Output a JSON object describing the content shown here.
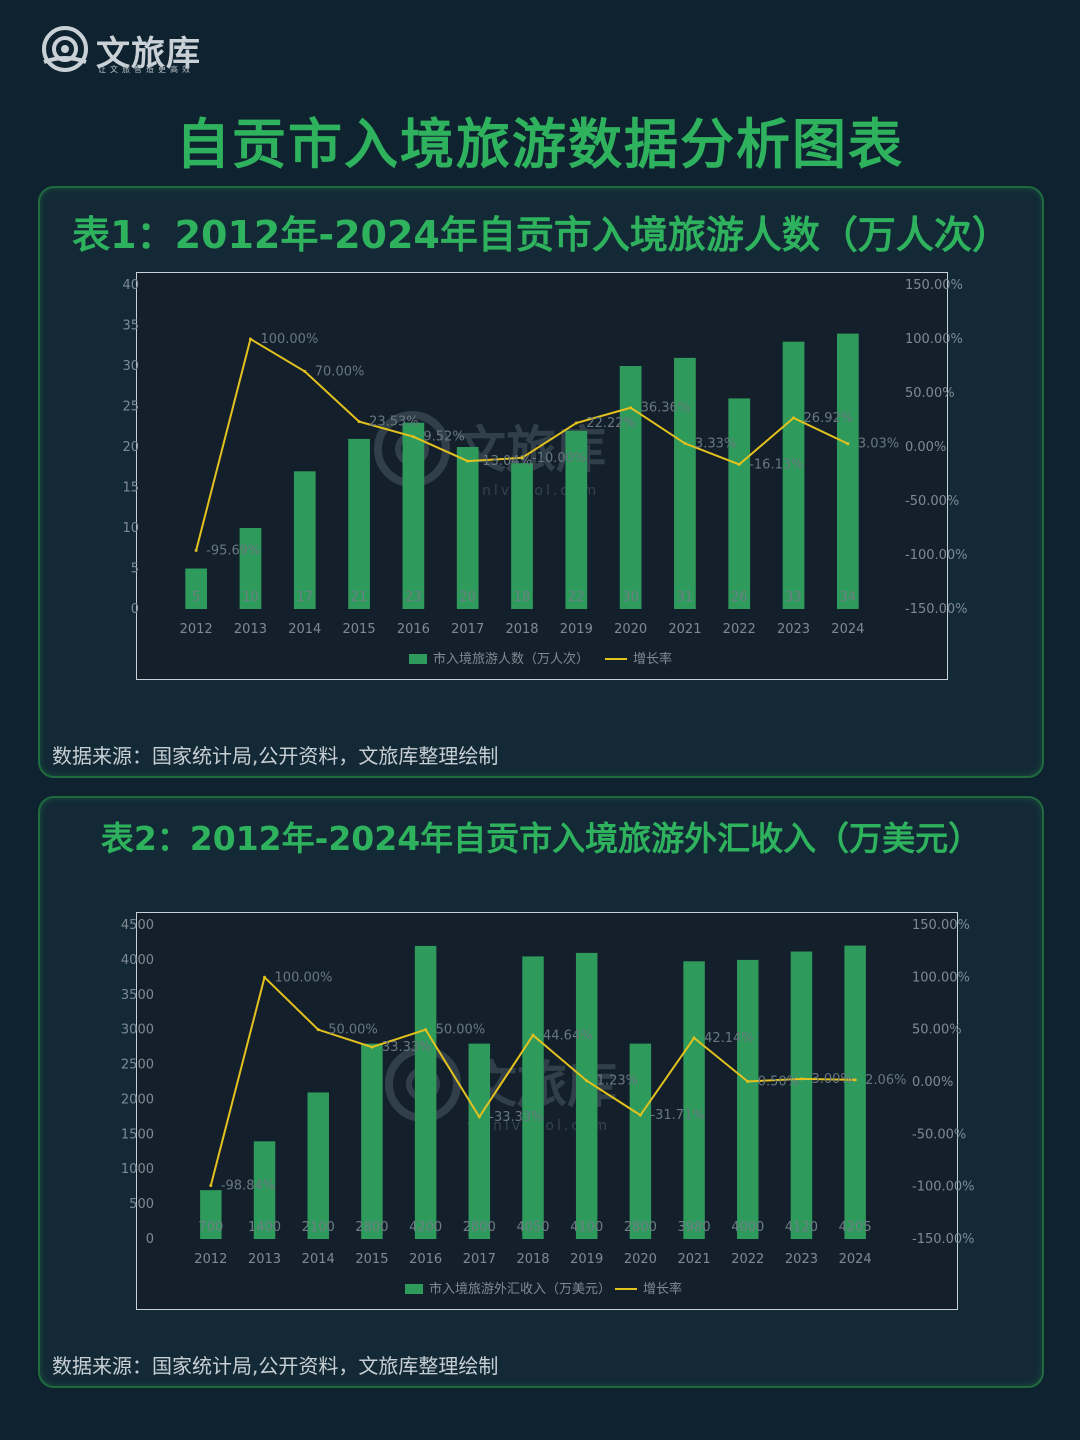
{
  "brand": {
    "name": "文旅库",
    "slogan": "让文旅智造更高效",
    "watermark_name": "文旅库",
    "watermark_url": "wenlvcool.com"
  },
  "page_title": "自贡市入境旅游数据分析图表",
  "colors": {
    "bar": "#2e9a5c",
    "line": "#e3c11e",
    "title": "#2fb25d",
    "background": "#0f2230"
  },
  "chart1": {
    "title": "表1：2012年-2024年自贡市入境旅游人数（万人次）",
    "source": "数据来源：国家统计局,公开资料，文旅库整理绘制"
  },
  "chart2": {
    "title": "表2：2012年-2024年自贡市入境旅游外汇收入（万美元）",
    "source": "数据来源：国家统计局,公开资料，文旅库整理绘制"
  },
  "chart_data": [
    {
      "type": "bar",
      "categories": [
        "2012",
        "2013",
        "2014",
        "2015",
        "2016",
        "2017",
        "2018",
        "2019",
        "2020",
        "2021",
        "2022",
        "2023",
        "2024"
      ],
      "series": [
        {
          "name": "市入境旅游人数（万人次）",
          "type": "bar",
          "axis": "left",
          "values": [
            5,
            10,
            17,
            21,
            23,
            20,
            18,
            22,
            30,
            31,
            26,
            33,
            34
          ],
          "labels": [
            "5",
            "10",
            "17",
            "21",
            "23",
            "20",
            "18",
            "22",
            "30",
            "31",
            "26",
            "33",
            "34"
          ]
        },
        {
          "name": "增长率",
          "type": "line",
          "axis": "right",
          "values": [
            -95.69,
            100.0,
            70.0,
            23.53,
            9.52,
            -13.04,
            -10.0,
            22.22,
            36.36,
            3.33,
            -16.13,
            26.92,
            3.03
          ],
          "labels": [
            "-95.69%",
            "100.00%",
            "70.00%",
            "23.53%",
            "9.52%",
            "-13.04%",
            "-10.00%",
            "22.22%",
            "36.36%",
            "3.33%",
            "-16.13%",
            "26.92%",
            "3.03%"
          ]
        }
      ],
      "y_left": {
        "min": 0,
        "max": 40,
        "ticks": [
          "0",
          "5",
          "10",
          "15",
          "20",
          "25",
          "30",
          "35",
          "40"
        ]
      },
      "y_right": {
        "min": -150,
        "max": 150,
        "ticks": [
          "-150.00%",
          "-100.00%",
          "-50.00%",
          "0.00%",
          "50.00%",
          "100.00%",
          "150.00%"
        ]
      },
      "legend_position": "bottom"
    },
    {
      "type": "bar",
      "categories": [
        "2012",
        "2013",
        "2014",
        "2015",
        "2016",
        "2017",
        "2018",
        "2019",
        "2020",
        "2021",
        "2022",
        "2023",
        "2024"
      ],
      "series": [
        {
          "name": "市入境旅游外汇收入（万美元）",
          "type": "bar",
          "axis": "left",
          "values": [
            700,
            1400,
            2100,
            2800,
            4200,
            2800,
            4050,
            4100,
            2800,
            3980,
            4000,
            4120,
            4205
          ],
          "labels": [
            "700",
            "1400",
            "2100",
            "2800",
            "4200",
            "2800",
            "4050",
            "4100",
            "2800",
            "3980",
            "4000",
            "4120",
            "4205"
          ]
        },
        {
          "name": "增长率",
          "type": "line",
          "axis": "right",
          "values": [
            -98.84,
            100.0,
            50.0,
            33.33,
            50.0,
            -33.33,
            44.64,
            1.23,
            -31.71,
            42.14,
            0.5,
            3.0,
            2.06
          ],
          "labels": [
            "-98.84%",
            "100.00%",
            "50.00%",
            "33.33%",
            "50.00%",
            "-33.33%",
            "44.64%",
            "1.23%",
            "-31.71%",
            "42.14%",
            "0.50%",
            "3.00%",
            "2.06%"
          ]
        }
      ],
      "y_left": {
        "min": 0,
        "max": 4500,
        "ticks": [
          "0",
          "500",
          "1000",
          "1500",
          "2000",
          "2500",
          "3000",
          "3500",
          "4000",
          "4500"
        ]
      },
      "y_right": {
        "min": -150,
        "max": 150,
        "ticks": [
          "-150.00%",
          "-100.00%",
          "-50.00%",
          "0.00%",
          "50.00%",
          "100.00%",
          "150.00%"
        ]
      },
      "legend_position": "bottom"
    }
  ]
}
